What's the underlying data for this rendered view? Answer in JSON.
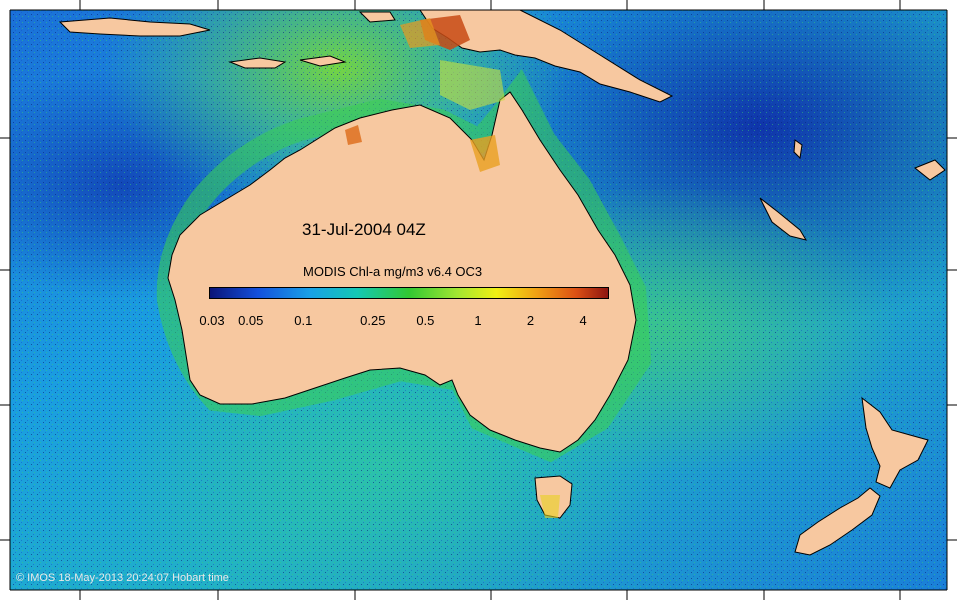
{
  "map": {
    "date_label": "31-Jul-2004 04Z",
    "colorbar": {
      "title": "MODIS Chl-a mg/m3 v6.4 OC3",
      "ticks": [
        {
          "label": "0.03",
          "value": 0.03
        },
        {
          "label": "0.05",
          "value": 0.05
        },
        {
          "label": "0.1",
          "value": 0.1
        },
        {
          "label": "0.25",
          "value": 0.25
        },
        {
          "label": "0.5",
          "value": 0.5
        },
        {
          "label": "1",
          "value": 1
        },
        {
          "label": "2",
          "value": 2
        },
        {
          "label": "4",
          "value": 4
        }
      ],
      "range": [
        0.03,
        5
      ],
      "scale": "log",
      "colors": [
        "#0a1478",
        "#1450dc",
        "#19a0e6",
        "#14c8b4",
        "#32c832",
        "#a0e632",
        "#f0f014",
        "#f0a014",
        "#dc5014",
        "#8c1410"
      ]
    },
    "copyright": "© IMOS 18-May-2013 20:24:07 Hobart time",
    "land_color": "#f7c8a0",
    "ocean_colors": {
      "deep": "#1040c0",
      "mid": "#1a8ae0",
      "shelf": "#28c8a0",
      "coastal": "#40d040"
    }
  }
}
